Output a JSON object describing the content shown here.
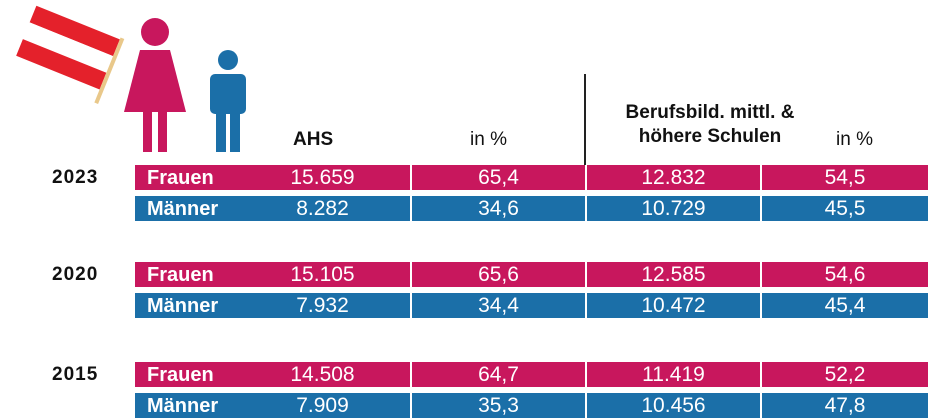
{
  "header": {
    "col1": "AHS",
    "col2": "in %",
    "col3": [
      "Berufsbild. mittl. &",
      "höhere Schulen"
    ],
    "col4": "in %"
  },
  "groups": [
    {
      "year": "2023",
      "rows": [
        {
          "label": "Frauen",
          "cells": [
            "15.659",
            "65,4",
            "12.832",
            "54,5"
          ]
        },
        {
          "label": "Männer",
          "cells": [
            "8.282",
            "34,6",
            "10.729",
            "45,5"
          ]
        }
      ]
    },
    {
      "year": "2020",
      "rows": [
        {
          "label": "Frauen",
          "cells": [
            "15.105",
            "65,6",
            "12.585",
            "54,6"
          ]
        },
        {
          "label": "Männer",
          "cells": [
            "7.932",
            "34,4",
            "10.472",
            "45,4"
          ]
        }
      ]
    },
    {
      "year": "2015",
      "rows": [
        {
          "label": "Frauen",
          "cells": [
            "14.508",
            "64,7",
            "11.419",
            "52,2"
          ]
        },
        {
          "label": "Männer",
          "cells": [
            "7.909",
            "35,3",
            "10.456",
            "47,8"
          ]
        }
      ]
    }
  ]
}
